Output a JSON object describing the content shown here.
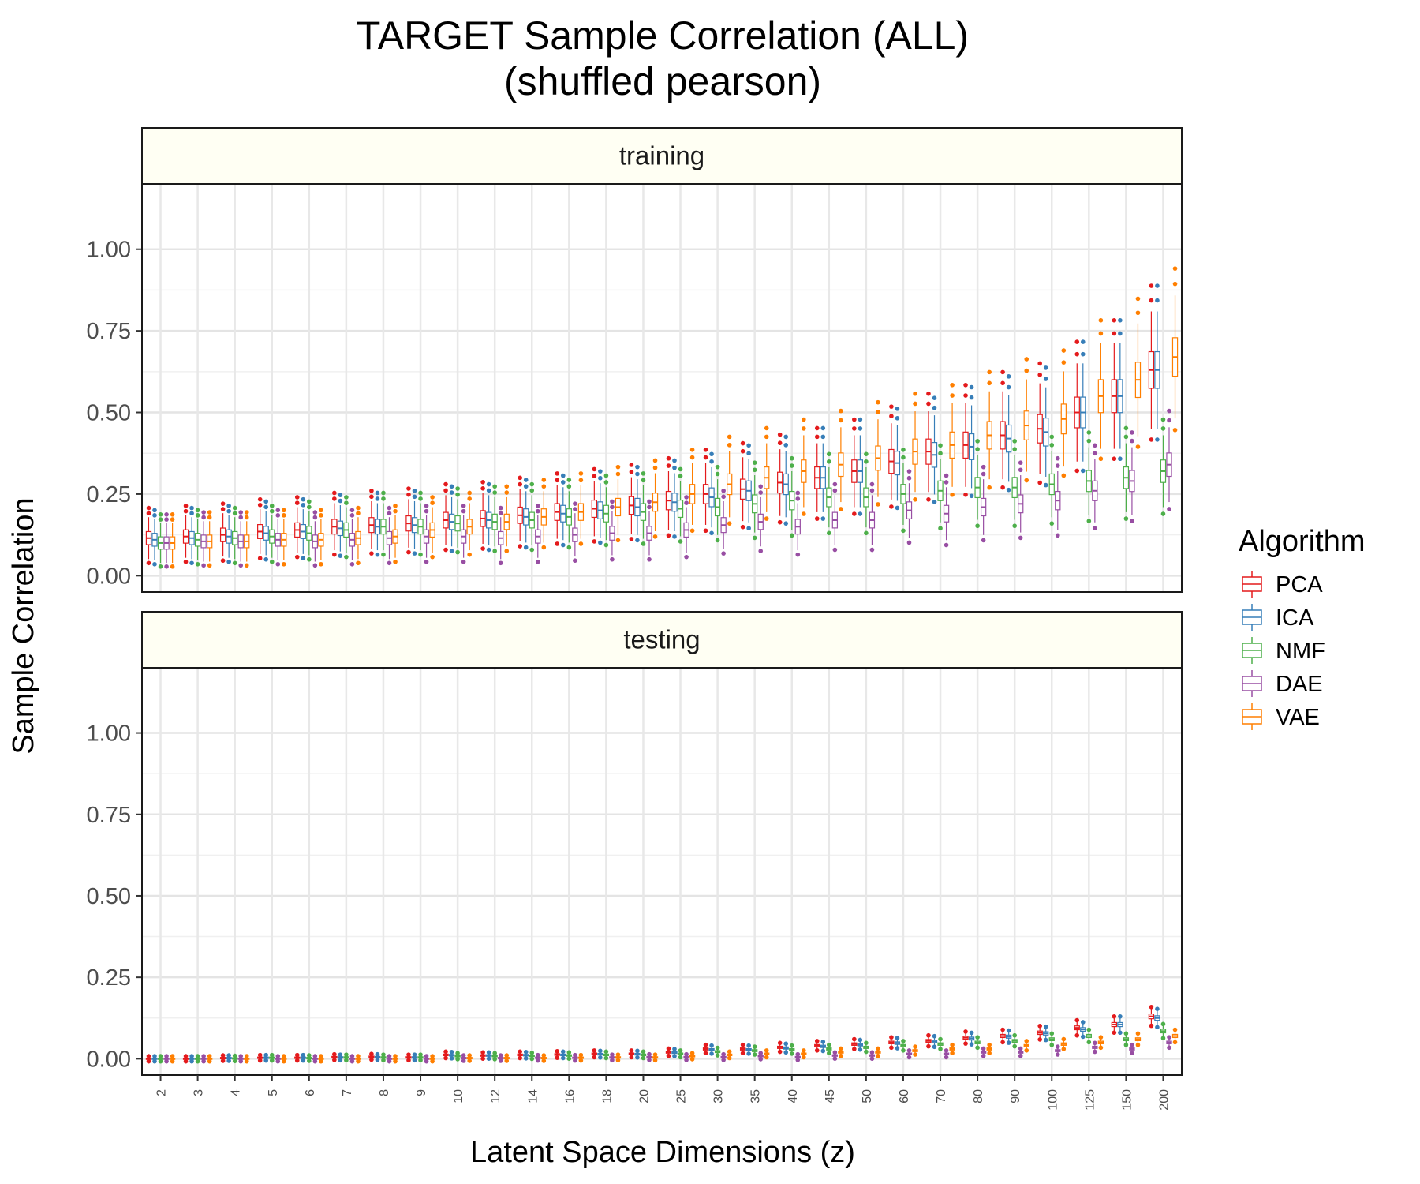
{
  "chart_data": {
    "type": "boxplot",
    "title": "TARGET Sample Correlation (ALL)",
    "subtitle": "(shuffled pearson)",
    "xlabel": "Latent Space Dimensions (z)",
    "ylabel": "Sample Correlation",
    "ylim": [
      -0.05,
      1.2
    ],
    "yticks": [
      "0.00",
      "0.25",
      "0.50",
      "0.75",
      "1.00"
    ],
    "categories": [
      "2",
      "3",
      "4",
      "5",
      "6",
      "7",
      "8",
      "9",
      "10",
      "12",
      "14",
      "16",
      "18",
      "20",
      "25",
      "30",
      "35",
      "40",
      "45",
      "50",
      "60",
      "70",
      "80",
      "90",
      "100",
      "125",
      "150",
      "200"
    ],
    "legend": {
      "title": "Algorithm",
      "position": "right",
      "items": [
        {
          "label": "PCA",
          "color": "#E41A1C"
        },
        {
          "label": "ICA",
          "color": "#377EB8"
        },
        {
          "label": "NMF",
          "color": "#4DAF4A"
        },
        {
          "label": "DAE",
          "color": "#984EA3"
        },
        {
          "label": "VAE",
          "color": "#FF7F00"
        }
      ]
    },
    "panels": [
      {
        "label": "training",
        "series": [
          {
            "name": "PCA",
            "median": [
              0.115,
              0.12,
              0.125,
              0.135,
              0.14,
              0.15,
              0.155,
              0.16,
              0.17,
              0.175,
              0.185,
              0.195,
              0.205,
              0.215,
              0.23,
              0.25,
              0.265,
              0.285,
              0.3,
              0.32,
              0.35,
              0.38,
              0.4,
              0.43,
              0.45,
              0.5,
              0.55,
              0.63
            ]
          },
          {
            "name": "ICA",
            "median": [
              0.11,
              0.115,
              0.12,
              0.13,
              0.135,
              0.145,
              0.15,
              0.155,
              0.165,
              0.17,
              0.18,
              0.19,
              0.2,
              0.21,
              0.225,
              0.24,
              0.26,
              0.28,
              0.3,
              0.32,
              0.345,
              0.37,
              0.395,
              0.42,
              0.44,
              0.5,
              0.55,
              0.63
            ]
          },
          {
            "name": "NMF",
            "median": [
              0.1,
              0.11,
              0.115,
              0.12,
              0.13,
              0.14,
              0.15,
              0.15,
              0.16,
              0.165,
              0.17,
              0.18,
              0.19,
              0.195,
              0.205,
              0.21,
              0.22,
              0.23,
              0.24,
              0.24,
              0.25,
              0.26,
              0.27,
              0.27,
              0.28,
              0.29,
              0.3,
              0.32
            ]
          },
          {
            "name": "DAE",
            "median": [
              0.1,
              0.105,
              0.105,
              0.11,
              0.105,
              0.11,
              0.115,
              0.12,
              0.12,
              0.115,
              0.12,
              0.125,
              0.13,
              0.13,
              0.14,
              0.155,
              0.165,
              0.15,
              0.17,
              0.17,
              0.2,
              0.19,
              0.21,
              0.22,
              0.23,
              0.26,
              0.29,
              0.34
            ]
          },
          {
            "name": "VAE",
            "median": [
              0.1,
              0.105,
              0.105,
              0.11,
              0.11,
              0.115,
              0.12,
              0.14,
              0.15,
              0.165,
              0.18,
              0.195,
              0.21,
              0.225,
              0.25,
              0.28,
              0.3,
              0.32,
              0.34,
              0.36,
              0.38,
              0.4,
              0.43,
              0.46,
              0.48,
              0.55,
              0.6,
              0.67
            ]
          }
        ]
      },
      {
        "label": "testing",
        "series": [
          {
            "name": "PCA",
            "median": [
              0.0,
              0.0,
              0.002,
              0.003,
              0.003,
              0.005,
              0.006,
              0.004,
              0.012,
              0.01,
              0.012,
              0.013,
              0.015,
              0.015,
              0.02,
              0.03,
              0.03,
              0.035,
              0.04,
              0.045,
              0.05,
              0.055,
              0.065,
              0.07,
              0.08,
              0.095,
              0.105,
              0.13
            ]
          },
          {
            "name": "ICA",
            "median": [
              0.0,
              0.0,
              0.002,
              0.003,
              0.003,
              0.004,
              0.005,
              0.004,
              0.011,
              0.01,
              0.011,
              0.012,
              0.014,
              0.014,
              0.019,
              0.028,
              0.028,
              0.033,
              0.038,
              0.043,
              0.048,
              0.053,
              0.062,
              0.068,
              0.078,
              0.09,
              0.105,
              0.125
            ]
          },
          {
            "name": "NMF",
            "median": [
              0.0,
              0.0,
              0.001,
              0.003,
              0.002,
              0.004,
              0.004,
              0.004,
              0.008,
              0.008,
              0.009,
              0.01,
              0.012,
              0.012,
              0.015,
              0.022,
              0.025,
              0.028,
              0.03,
              0.035,
              0.04,
              0.045,
              0.05,
              0.055,
              0.06,
              0.07,
              0.06,
              0.085
            ]
          },
          {
            "name": "DAE",
            "median": [
              0.0,
              0.0,
              0.0,
              0.0,
              0.0,
              0.0,
              0.0,
              0.0,
              0.002,
              0.002,
              0.003,
              0.003,
              0.004,
              0.005,
              0.005,
              0.005,
              0.008,
              0.005,
              0.01,
              0.01,
              0.015,
              0.015,
              0.02,
              0.02,
              0.025,
              0.035,
              0.03,
              0.05
            ]
          },
          {
            "name": "VAE",
            "median": [
              0.0,
              0.0,
              0.0,
              0.0,
              0.0,
              0.0,
              0.0,
              0.0,
              0.002,
              0.002,
              0.002,
              0.003,
              0.004,
              0.004,
              0.008,
              0.012,
              0.015,
              0.015,
              0.02,
              0.02,
              0.025,
              0.03,
              0.03,
              0.04,
              0.045,
              0.05,
              0.06,
              0.07
            ]
          }
        ]
      }
    ]
  }
}
